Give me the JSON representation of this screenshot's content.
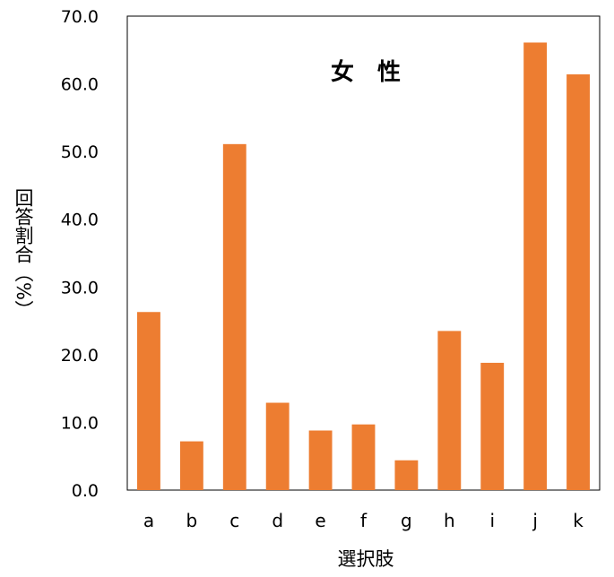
{
  "chart_data": {
    "type": "bar",
    "title": "女　性",
    "xlabel": "選択肢",
    "ylabel": "回答割合（%）",
    "categories": [
      "a",
      "b",
      "c",
      "d",
      "e",
      "f",
      "g",
      "h",
      "i",
      "j",
      "k"
    ],
    "values": [
      26.3,
      7.2,
      51.1,
      12.9,
      8.8,
      9.7,
      4.4,
      23.5,
      18.8,
      66.1,
      61.4
    ],
    "ylim": [
      0,
      70
    ],
    "ytick_step": 10,
    "ytick_labels": [
      "0.0",
      "10.0",
      "20.0",
      "30.0",
      "40.0",
      "50.0",
      "60.0",
      "70.0"
    ],
    "bar_color": "#ED7D31",
    "grid": false,
    "legend": "none"
  }
}
